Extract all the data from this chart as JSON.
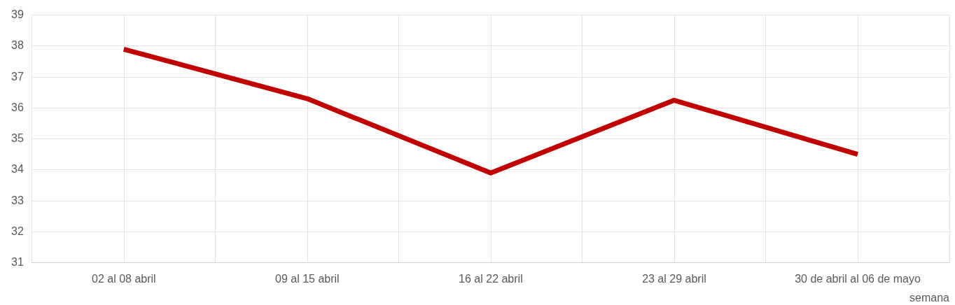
{
  "chart_data": {
    "type": "line",
    "xlabel": "semana",
    "categories": [
      "02 al 08 abril",
      "09 al 15 abril",
      "16 al 22 abril",
      "23 al 29 abril",
      "30 de abril al 06 de mayo"
    ],
    "series": [
      {
        "color": "#c00000",
        "values": [
          37.9,
          36.3,
          33.9,
          36.25,
          34.5
        ]
      }
    ],
    "ylim": [
      31,
      39
    ],
    "yticks": [
      31,
      32,
      33,
      34,
      35,
      36,
      37,
      38,
      39
    ],
    "grid": true,
    "legend": false,
    "marker": "none",
    "line_style": "solid"
  }
}
